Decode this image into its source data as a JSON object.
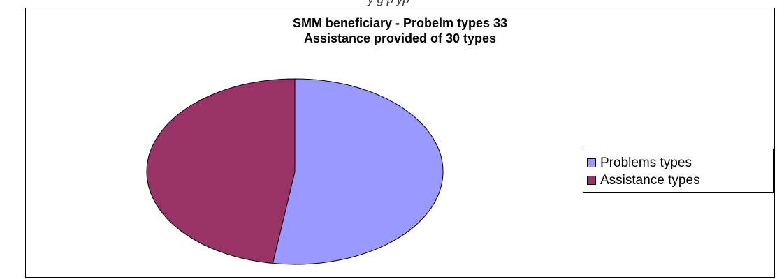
{
  "header": {
    "caption": "y                                                       g p                                                                           yp"
  },
  "chart_data": {
    "type": "pie",
    "title_lines": [
      "SMM beneficiary - Probelm types 33",
      "Assistance provided of 30 types"
    ],
    "categories": [
      "Problems types",
      "Assistance types"
    ],
    "values": [
      33,
      30
    ],
    "colors": [
      "#9999ff",
      "#993366"
    ],
    "legend_position": "right"
  }
}
